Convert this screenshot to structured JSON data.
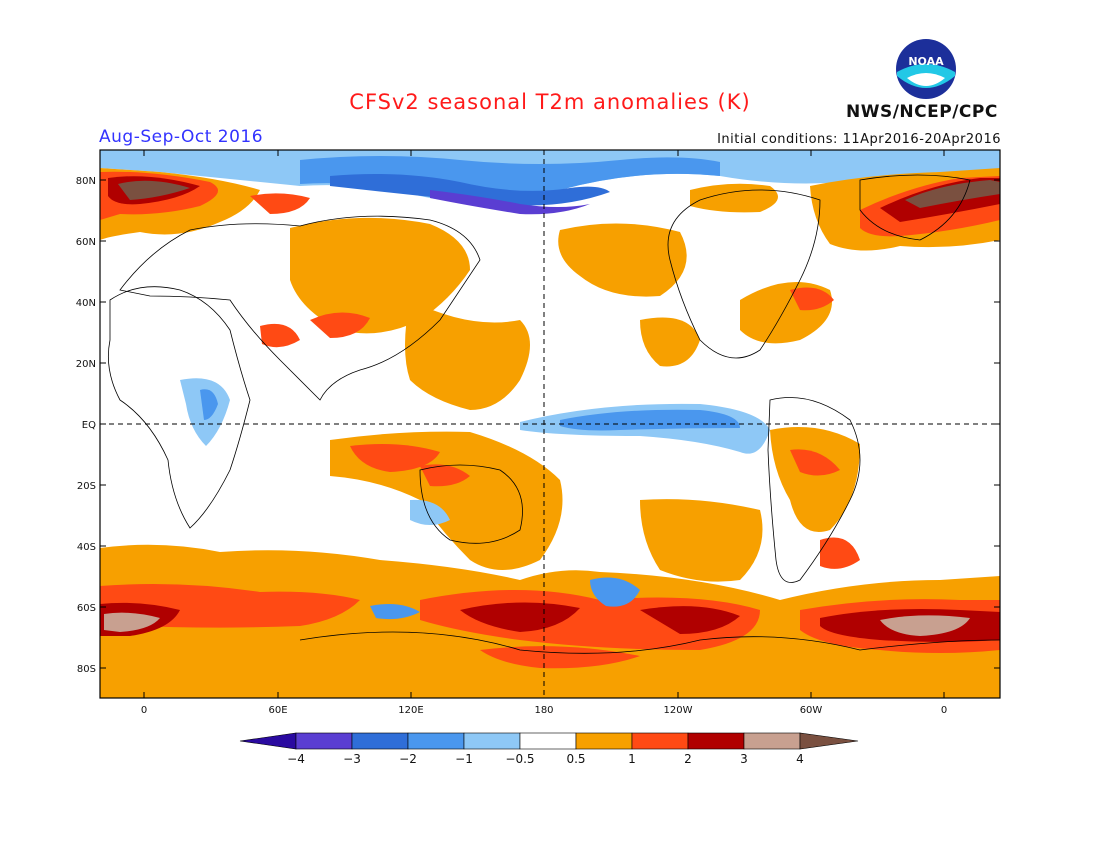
{
  "title": "CFSv2 seasonal T2m anomalies (K)",
  "season": "Aug-Sep-Oct 2016",
  "initial_conditions": "Initial conditions: 11Apr2016-20Apr2016",
  "agency": "NWS/NCEP/CPC",
  "logo_text": "NOAA",
  "colors": {
    "title": "#ff1a1a",
    "season": "#3333ff",
    "levels": [
      "#2a0aa0",
      "#5a3ed2",
      "#2f6ed8",
      "#4a97ee",
      "#8ec8f6",
      "#ffffff",
      "#f7a000",
      "#ff4a14",
      "#b00000",
      "#c8a090",
      "#7a5040"
    ]
  },
  "y_ticks": [
    "80N",
    "60N",
    "40N",
    "20N",
    "EQ",
    "20S",
    "40S",
    "60S",
    "80S"
  ],
  "x_ticks": [
    "0",
    "60E",
    "120E",
    "180",
    "120W",
    "60W",
    "0"
  ],
  "colorbar": {
    "labels": [
      "−4",
      "−3",
      "−2",
      "−1",
      "−0.5",
      "0.5",
      "1",
      "2",
      "3",
      "4"
    ]
  }
}
